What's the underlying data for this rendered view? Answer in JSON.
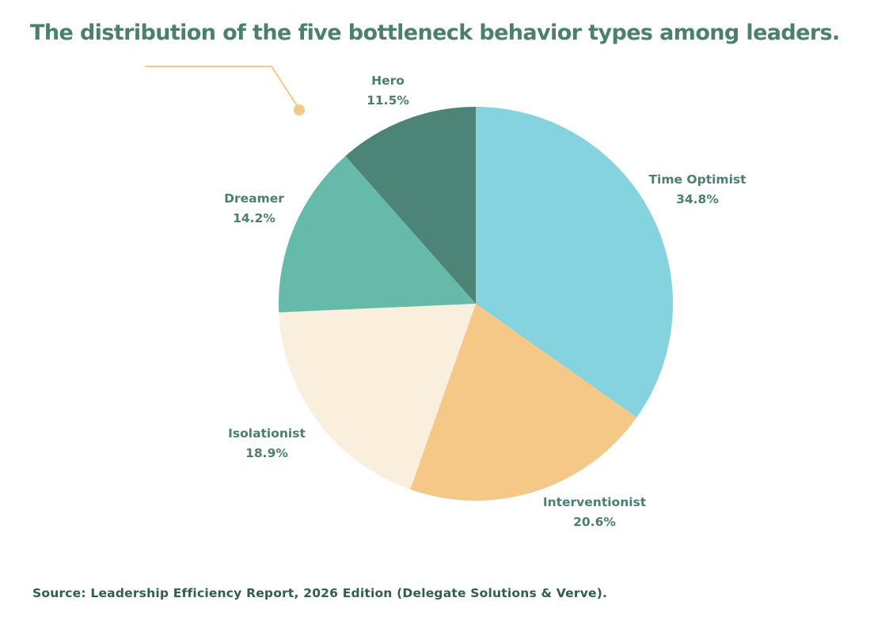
{
  "chart_data": {
    "type": "pie",
    "title": "The distribution of the five bottleneck behavior types among leaders.",
    "categories": [
      "Time Optimist",
      "Interventionist",
      "Isolationist",
      "Dreamer",
      "Hero"
    ],
    "values": [
      34.8,
      20.6,
      18.9,
      14.2,
      11.5
    ],
    "value_labels": [
      "34.8%",
      "20.6%",
      "18.9%",
      "14.2%",
      "11.5%"
    ],
    "colors": [
      "#86D3E0",
      "#F5C887",
      "#FAEEDC",
      "#65BAA9",
      "#4C8478"
    ],
    "start": "top",
    "direction": "clockwise",
    "source": "Source: Leadership Efficiency Report, 2026 Edition (Delegate Solutions & Verve)."
  },
  "colors": {
    "title": "#4A7F72",
    "accent_line": "#F5C887"
  }
}
